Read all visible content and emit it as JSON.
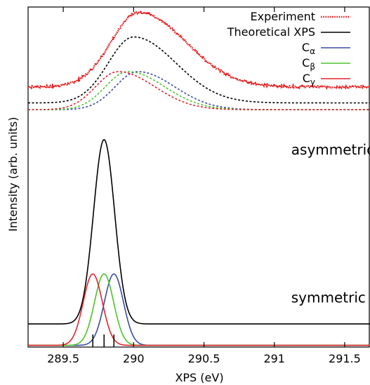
{
  "chart_data": {
    "type": "line",
    "title": "",
    "xlabel": "XPS (eV)",
    "ylabel": "Intensity (arb. units)",
    "xlim": [
      289.25,
      291.68
    ],
    "ylim": [
      0,
      1
    ],
    "xticks": [
      289.5,
      290,
      290.5,
      291,
      291.5
    ],
    "xtick_labels": [
      "289.5",
      "290",
      "290.5",
      "291",
      "291.5"
    ],
    "grid": false,
    "legend_position": "top-right",
    "legend": [
      {
        "label": "Experiment",
        "sub": "",
        "color": "#e31a1c",
        "dash": "dotted"
      },
      {
        "label": "Theoretical XPS",
        "sub": "",
        "color": "#000000",
        "dash": "solid"
      },
      {
        "label": "C",
        "sub": "α",
        "color": "#3b4ba8",
        "dash": "solid"
      },
      {
        "label": "C",
        "sub": "β",
        "color": "#4cc42b",
        "dash": "solid"
      },
      {
        "label": "C",
        "sub": "γ",
        "color": "#e0242c",
        "dash": "solid"
      }
    ],
    "annotations": [
      {
        "text": "asymmetric",
        "x": 291.12,
        "y": 0.566
      },
      {
        "text": "symmetric",
        "x": 291.12,
        "y": 0.131
      }
    ],
    "stick_markers": [
      289.71,
      289.79,
      289.86
    ],
    "panels": [
      {
        "name": "asymmetric",
        "series": [
          {
            "name": "Experiment",
            "color": "#e31a1c",
            "dash": "dotted",
            "baseline": 0.765,
            "peak_x": 290.04,
            "peak_y": 0.984,
            "shape": "asymmetric",
            "width_left": 0.2,
            "width_right": 0.33
          },
          {
            "name": "Theoretical XPS",
            "color": "#000000",
            "dash": "dashed",
            "baseline": 0.718,
            "peak_x": 290.0,
            "peak_y": 0.912,
            "shape": "asymmetric",
            "width_left": 0.18,
            "width_right": 0.3
          },
          {
            "name": "Cα",
            "color": "#3b4ba8",
            "dash": "dashed",
            "baseline": 0.698,
            "peak_x": 290.03,
            "peak_y": 0.81,
            "shape": "asymmetric",
            "width_left": 0.16,
            "width_right": 0.26
          },
          {
            "name": "Cβ",
            "color": "#4cc42b",
            "dash": "dashed",
            "baseline": 0.698,
            "peak_x": 289.96,
            "peak_y": 0.81,
            "shape": "asymmetric",
            "width_left": 0.16,
            "width_right": 0.26
          },
          {
            "name": "Cγ",
            "color": "#e0242c",
            "dash": "dashed",
            "baseline": 0.698,
            "peak_x": 289.89,
            "peak_y": 0.81,
            "shape": "asymmetric",
            "width_left": 0.16,
            "width_right": 0.26
          }
        ]
      },
      {
        "name": "symmetric",
        "series": [
          {
            "name": "Theoretical XPS",
            "color": "#000000",
            "dash": "solid",
            "baseline": 0.068,
            "peak_x": 289.79,
            "peak_y": 0.61,
            "shape": "gaussian",
            "width": 0.075
          },
          {
            "name": "Cα",
            "color": "#3b4ba8",
            "dash": "solid",
            "baseline": 0.005,
            "peak_x": 289.86,
            "peak_y": 0.215,
            "shape": "gaussian",
            "width": 0.068
          },
          {
            "name": "Cβ",
            "color": "#4cc42b",
            "dash": "solid",
            "baseline": 0.005,
            "peak_x": 289.79,
            "peak_y": 0.215,
            "shape": "gaussian",
            "width": 0.068
          },
          {
            "name": "Cγ",
            "color": "#e0242c",
            "dash": "solid",
            "baseline": 0.005,
            "peak_x": 289.71,
            "peak_y": 0.215,
            "shape": "gaussian",
            "width": 0.068
          }
        ]
      }
    ]
  }
}
